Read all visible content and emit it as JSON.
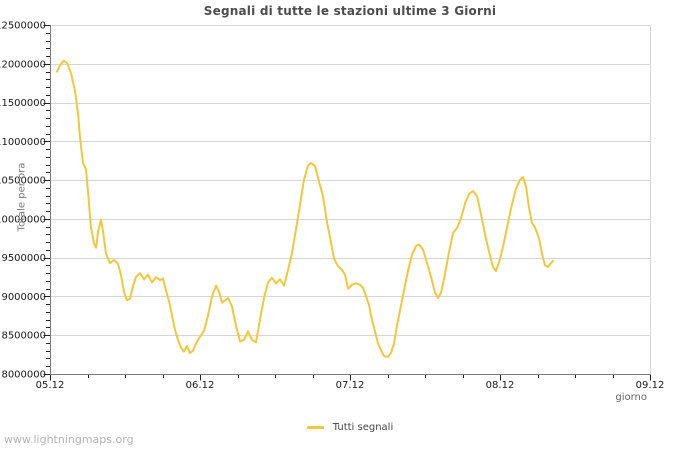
{
  "footer": {
    "watermark": "www.lightningmaps.org"
  },
  "chart_data": {
    "type": "line",
    "title": "Segnali di tutte le stazioni ultime 3 Giorni",
    "xlabel": "giorno",
    "ylabel": "Totale per ora",
    "x_range": [
      5,
      9
    ],
    "ylim": [
      8000000,
      12500000
    ],
    "x_tick_labels": [
      "05.12",
      "06.12",
      "07.12",
      "08.12",
      "09.12"
    ],
    "x_tick_values": [
      5,
      6,
      7,
      8,
      9
    ],
    "x_minor_step": 0.25,
    "y_tick_labels": [
      "8000000",
      "8500000",
      "9000000",
      "9500000",
      "10000000",
      "10500000",
      "11000000",
      "11500000",
      "12000000",
      "12500000"
    ],
    "y_tick_values": [
      8000000,
      8500000,
      9000000,
      9500000,
      10000000,
      10500000,
      11000000,
      11500000,
      12000000,
      12500000
    ],
    "y_minor_step": 100000,
    "grid": "horizontal-only",
    "legend_position": "bottom-center",
    "colors": {
      "series": "#efc83f",
      "grid": "#d6d6d6",
      "axis": "#7a7a7a",
      "tick": "#222222",
      "tick_label": "#1a1a1a"
    },
    "series": [
      {
        "name": "Tutti segnali",
        "color": "#efc83f",
        "points": [
          [
            5.047,
            11900000
          ],
          [
            5.073,
            12000000
          ],
          [
            5.093,
            12040000
          ],
          [
            5.113,
            12010000
          ],
          [
            5.14,
            11880000
          ],
          [
            5.167,
            11650000
          ],
          [
            5.187,
            11350000
          ],
          [
            5.2,
            11050000
          ],
          [
            5.22,
            10720000
          ],
          [
            5.24,
            10640000
          ],
          [
            5.253,
            10350000
          ],
          [
            5.273,
            9900000
          ],
          [
            5.293,
            9680000
          ],
          [
            5.307,
            9630000
          ],
          [
            5.32,
            9830000
          ],
          [
            5.34,
            9990000
          ],
          [
            5.353,
            9850000
          ],
          [
            5.373,
            9550000
          ],
          [
            5.4,
            9430000
          ],
          [
            5.427,
            9470000
          ],
          [
            5.453,
            9420000
          ],
          [
            5.473,
            9280000
          ],
          [
            5.493,
            9060000
          ],
          [
            5.513,
            8950000
          ],
          [
            5.533,
            8970000
          ],
          [
            5.553,
            9130000
          ],
          [
            5.573,
            9250000
          ],
          [
            5.6,
            9300000
          ],
          [
            5.627,
            9220000
          ],
          [
            5.653,
            9280000
          ],
          [
            5.68,
            9180000
          ],
          [
            5.707,
            9250000
          ],
          [
            5.733,
            9210000
          ],
          [
            5.753,
            9230000
          ],
          [
            5.773,
            9080000
          ],
          [
            5.793,
            8940000
          ],
          [
            5.813,
            8760000
          ],
          [
            5.833,
            8570000
          ],
          [
            5.853,
            8440000
          ],
          [
            5.873,
            8340000
          ],
          [
            5.893,
            8290000
          ],
          [
            5.913,
            8360000
          ],
          [
            5.933,
            8270000
          ],
          [
            5.953,
            8300000
          ],
          [
            5.973,
            8390000
          ],
          [
            6.0,
            8480000
          ],
          [
            6.027,
            8560000
          ],
          [
            6.053,
            8750000
          ],
          [
            6.08,
            9000000
          ],
          [
            6.107,
            9140000
          ],
          [
            6.127,
            9060000
          ],
          [
            6.147,
            8920000
          ],
          [
            6.167,
            8950000
          ],
          [
            6.187,
            8980000
          ],
          [
            6.213,
            8870000
          ],
          [
            6.24,
            8620000
          ],
          [
            6.267,
            8420000
          ],
          [
            6.293,
            8440000
          ],
          [
            6.32,
            8550000
          ],
          [
            6.347,
            8440000
          ],
          [
            6.373,
            8410000
          ],
          [
            6.4,
            8700000
          ],
          [
            6.427,
            8980000
          ],
          [
            6.453,
            9180000
          ],
          [
            6.48,
            9240000
          ],
          [
            6.507,
            9170000
          ],
          [
            6.533,
            9220000
          ],
          [
            6.56,
            9140000
          ],
          [
            6.587,
            9340000
          ],
          [
            6.613,
            9560000
          ],
          [
            6.64,
            9870000
          ],
          [
            6.667,
            10180000
          ],
          [
            6.693,
            10500000
          ],
          [
            6.72,
            10690000
          ],
          [
            6.74,
            10720000
          ],
          [
            6.767,
            10680000
          ],
          [
            6.793,
            10480000
          ],
          [
            6.82,
            10290000
          ],
          [
            6.847,
            9950000
          ],
          [
            6.873,
            9700000
          ],
          [
            6.893,
            9490000
          ],
          [
            6.92,
            9390000
          ],
          [
            6.947,
            9340000
          ],
          [
            6.967,
            9280000
          ],
          [
            6.987,
            9100000
          ],
          [
            7.013,
            9150000
          ],
          [
            7.04,
            9170000
          ],
          [
            7.067,
            9150000
          ],
          [
            7.087,
            9110000
          ],
          [
            7.107,
            9000000
          ],
          [
            7.127,
            8890000
          ],
          [
            7.147,
            8690000
          ],
          [
            7.167,
            8550000
          ],
          [
            7.187,
            8390000
          ],
          [
            7.207,
            8310000
          ],
          [
            7.227,
            8230000
          ],
          [
            7.253,
            8220000
          ],
          [
            7.273,
            8270000
          ],
          [
            7.293,
            8390000
          ],
          [
            7.313,
            8620000
          ],
          [
            7.333,
            8820000
          ],
          [
            7.36,
            9080000
          ],
          [
            7.387,
            9330000
          ],
          [
            7.413,
            9540000
          ],
          [
            7.44,
            9650000
          ],
          [
            7.46,
            9670000
          ],
          [
            7.487,
            9600000
          ],
          [
            7.513,
            9440000
          ],
          [
            7.54,
            9250000
          ],
          [
            7.567,
            9050000
          ],
          [
            7.587,
            8980000
          ],
          [
            7.607,
            9050000
          ],
          [
            7.633,
            9280000
          ],
          [
            7.66,
            9570000
          ],
          [
            7.687,
            9820000
          ],
          [
            7.713,
            9880000
          ],
          [
            7.74,
            10010000
          ],
          [
            7.767,
            10200000
          ],
          [
            7.793,
            10320000
          ],
          [
            7.82,
            10360000
          ],
          [
            7.847,
            10290000
          ],
          [
            7.873,
            10060000
          ],
          [
            7.9,
            9800000
          ],
          [
            7.927,
            9580000
          ],
          [
            7.953,
            9380000
          ],
          [
            7.973,
            9330000
          ],
          [
            8.0,
            9480000
          ],
          [
            8.027,
            9700000
          ],
          [
            8.053,
            9950000
          ],
          [
            8.08,
            10190000
          ],
          [
            8.107,
            10390000
          ],
          [
            8.133,
            10500000
          ],
          [
            8.153,
            10540000
          ],
          [
            8.173,
            10420000
          ],
          [
            8.193,
            10150000
          ],
          [
            8.213,
            9950000
          ],
          [
            8.233,
            9890000
          ],
          [
            8.26,
            9750000
          ],
          [
            8.28,
            9550000
          ],
          [
            8.3,
            9400000
          ],
          [
            8.32,
            9380000
          ],
          [
            8.34,
            9430000
          ],
          [
            8.353,
            9460000
          ]
        ]
      }
    ]
  }
}
